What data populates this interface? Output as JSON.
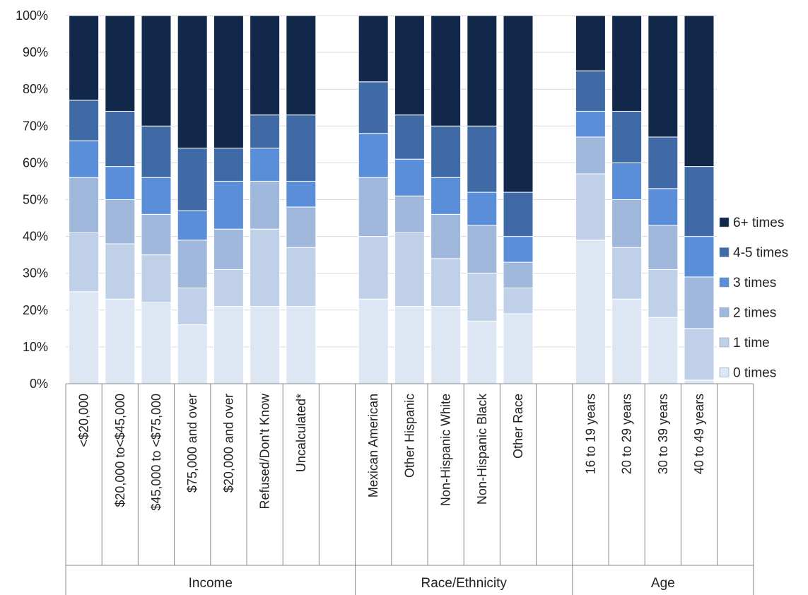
{
  "chart_data": {
    "type": "bar",
    "stacked": true,
    "percent": true,
    "ylim": [
      0,
      100
    ],
    "yticks": [
      "0%",
      "10%",
      "20%",
      "30%",
      "40%",
      "50%",
      "60%",
      "70%",
      "80%",
      "90%",
      "100%"
    ],
    "legend_position": "right",
    "groups": [
      {
        "label": "Income",
        "categories": [
          "<$20,000",
          "$20,000 to<$45,000",
          "$45,000 to <$75,000",
          "$75,000 and over",
          "$20,000 and over",
          "Refused/Don't Know",
          "Uncalculated*"
        ]
      },
      {
        "label": "Race/Ethnicity",
        "categories": [
          "Mexican American",
          "Other Hispanic",
          "Non-Hispanic White",
          "Non-Hispanic Black",
          "Other Race"
        ]
      },
      {
        "label": "Age",
        "categories": [
          "16 to 19 years",
          "20 to 29 years",
          "30 to 39 years",
          "40 to 49 years"
        ]
      }
    ],
    "series": [
      {
        "name": "0 times",
        "color": "#dde6f3",
        "values": [
          25,
          23,
          22,
          16,
          21,
          21,
          21,
          23,
          21,
          21,
          17,
          19,
          39,
          23,
          18,
          1
        ]
      },
      {
        "name": "1 time",
        "color": "#c0d0e8",
        "values": [
          16,
          15,
          13,
          10,
          10,
          21,
          16,
          17,
          20,
          13,
          13,
          7,
          18,
          14,
          13,
          14
        ]
      },
      {
        "name": "2 times",
        "color": "#a0b8dc",
        "values": [
          15,
          12,
          11,
          13,
          11,
          13,
          11,
          16,
          10,
          12,
          13,
          7,
          10,
          13,
          12,
          14
        ]
      },
      {
        "name": "3 times",
        "color": "#5a8ed8",
        "values": [
          10,
          9,
          10,
          8,
          13,
          9,
          7,
          12,
          10,
          10,
          9,
          7,
          7,
          10,
          10,
          11
        ]
      },
      {
        "name": "4-5 times",
        "color": "#3f6aa5",
        "values": [
          11,
          15,
          14,
          17,
          9,
          9,
          18,
          14,
          12,
          14,
          18,
          12,
          11,
          14,
          14,
          19
        ]
      },
      {
        "name": "6+ times",
        "color": "#12284a",
        "values": [
          23,
          26,
          30,
          36,
          36,
          27,
          27,
          18,
          27,
          30,
          30,
          48,
          15,
          26,
          33,
          41
        ]
      }
    ]
  }
}
